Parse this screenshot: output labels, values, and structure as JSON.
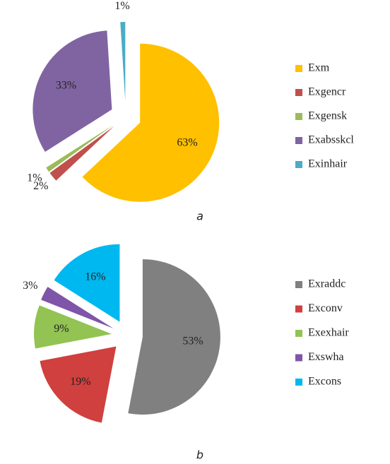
{
  "chart_data": [
    {
      "type": "pie",
      "caption": "a",
      "categories": [
        "Exm",
        "Exgencr",
        "Exgensk",
        "Exabsskcl",
        "Exinhair"
      ],
      "values": [
        63,
        2,
        1,
        33,
        1
      ],
      "value_labels": [
        "63%",
        "2%",
        "1%",
        "33%",
        "1%"
      ],
      "colors": [
        "#ffc000",
        "#c0504d",
        "#9bbb59",
        "#8064a2",
        "#4bacc6"
      ]
    },
    {
      "type": "pie",
      "caption": "b",
      "categories": [
        "Exraddc",
        "Exconv",
        "Exexhair",
        "Exswha",
        "Excons"
      ],
      "values": [
        53,
        19,
        9,
        3,
        16
      ],
      "value_labels": [
        "53%",
        "19%",
        "9%",
        "3%",
        "16%"
      ],
      "colors": [
        "#808080",
        "#d0403e",
        "#92c353",
        "#7e55a8",
        "#00b8f0"
      ]
    }
  ]
}
